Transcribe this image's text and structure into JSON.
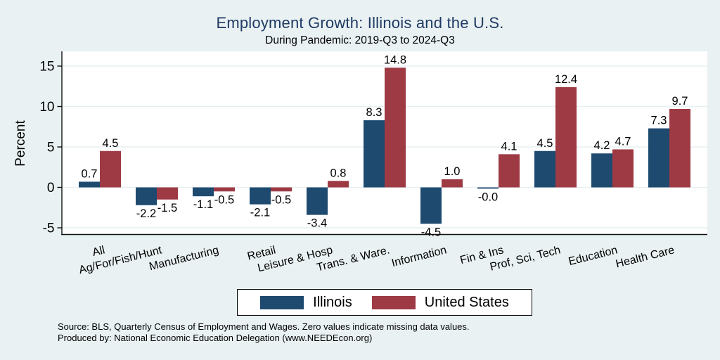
{
  "chart_data": {
    "type": "bar",
    "title": "Employment Growth: Illinois and the U.S.",
    "subtitle": "During Pandemic: 2019-Q3 to 2024-Q3",
    "ylabel": "Percent",
    "categories": [
      "All",
      "Ag/For/Fish/Hunt",
      "Manufacturing",
      "Retail",
      "Leisure & Hosp",
      "Trans. & Ware.",
      "Information",
      "Fin & Ins",
      "Prof, Sci, Tech",
      "Education",
      "Health Care"
    ],
    "series": [
      {
        "name": "Illinois",
        "color": "#1e4a70",
        "values": [
          0.7,
          -2.2,
          -1.1,
          -2.1,
          -3.4,
          8.3,
          -4.5,
          -0.0,
          4.5,
          4.2,
          7.3
        ],
        "labels": [
          "0.7",
          "-2.2",
          "-1.1",
          "-2.1",
          "-3.4",
          "8.3",
          "-4.5",
          "-0.0",
          "4.5",
          "4.2",
          "7.3"
        ]
      },
      {
        "name": "United States",
        "color": "#9d3a44",
        "values": [
          4.5,
          -1.5,
          -0.5,
          -0.5,
          0.8,
          14.8,
          1.0,
          4.1,
          12.4,
          4.7,
          9.7
        ],
        "labels": [
          "4.5",
          "-1.5",
          "-0.5",
          "-0.5",
          "0.8",
          "14.8",
          "1.0",
          "4.1",
          "12.4",
          "4.7",
          "9.7"
        ]
      }
    ],
    "yticks": [
      -5,
      0,
      5,
      10,
      15
    ],
    "ylim": [
      -5.8,
      16.8
    ],
    "grid": true,
    "legend_position": "bottom-center",
    "colors": {
      "page_background": "#e9f1f2",
      "plot_background": "#ffffff",
      "gridline": "#e7eff1",
      "axis": "#111111",
      "title": "#1f3a64",
      "text": "#000000"
    }
  },
  "notes": {
    "source": "Source: BLS, Quarterly Census of Employment and Wages. Zero values indicate missing data values.",
    "produced_by": "Produced by: National Economic Education Delegation (www.NEEDEcon.org)"
  }
}
